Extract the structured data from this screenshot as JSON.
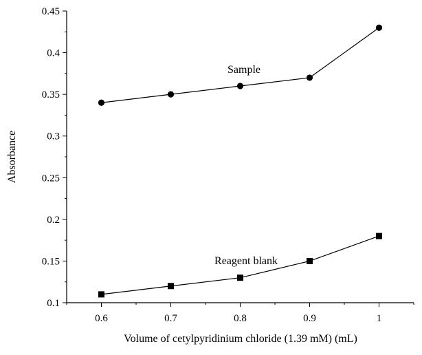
{
  "chart_data": {
    "type": "line",
    "xlabel": "Volume of cetylpyridinium chloride (1.39 mM) (mL)",
    "ylabel": "Absorbance",
    "xlim": [
      0.55,
      1.05
    ],
    "ylim": [
      0.1,
      0.45
    ],
    "x_ticks": [
      "0.6",
      "0.7",
      "0.8",
      "0.9",
      "1"
    ],
    "y_ticks": [
      "0.1",
      "0.15",
      "0.2",
      "0.25",
      "0.3",
      "0.35",
      "0.4",
      "0.45"
    ],
    "grid": false,
    "legend": "none",
    "series": [
      {
        "name": "Sample",
        "marker": "circle",
        "color": "#000000",
        "x": [
          0.6,
          0.7,
          0.8,
          0.9,
          1.0
        ],
        "y": [
          0.34,
          0.35,
          0.36,
          0.37,
          0.43
        ]
      },
      {
        "name": "Reagent blank",
        "marker": "square",
        "color": "#000000",
        "x": [
          0.6,
          0.7,
          0.8,
          0.9,
          1.0
        ],
        "y": [
          0.11,
          0.12,
          0.13,
          0.15,
          0.18
        ]
      }
    ]
  }
}
